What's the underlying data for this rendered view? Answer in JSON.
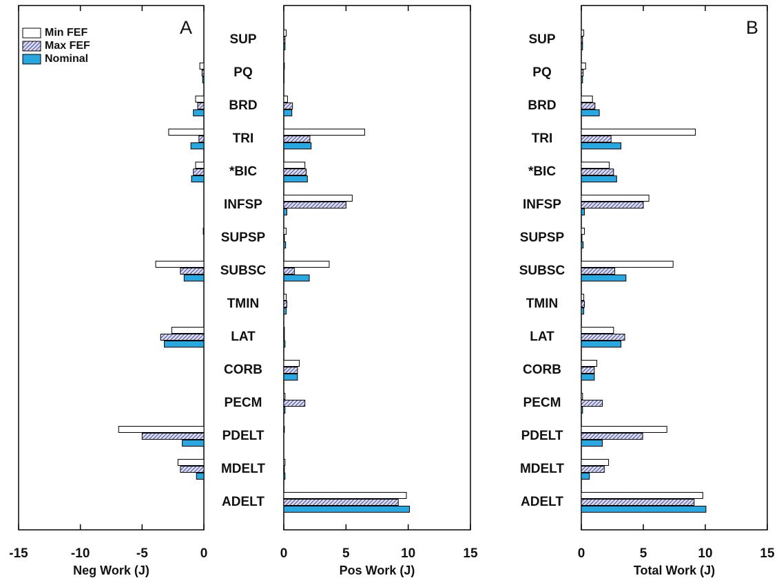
{
  "chart_data": [
    {
      "type": "bar",
      "orientation": "horizontal",
      "xlabel": "Neg Work (J)",
      "annotation": "A",
      "legend": "upper left",
      "categories": [
        "SUP",
        "PQ",
        "BRD",
        "TRI",
        "*BIC",
        "INFSP",
        "SUPSP",
        "SUBSC",
        "TMIN",
        "LAT",
        "CORB",
        "PECM",
        "PDELT",
        "MDELT",
        "ADELT"
      ],
      "xlim": [
        -15,
        0
      ],
      "xticks": [
        -15,
        -10,
        -5,
        0
      ],
      "series": [
        {
          "name": "Min FEF",
          "color": "#ffffff",
          "values": [
            0,
            -0.33,
            -0.67,
            -2.85,
            -0.67,
            0,
            -0.05,
            -3.9,
            0,
            -2.6,
            0,
            0,
            -6.9,
            -2.1,
            0
          ]
        },
        {
          "name": "Max FEF",
          "color": "#4a4f9a",
          "hatch": true,
          "values": [
            0,
            -0.15,
            -0.5,
            -0.4,
            -0.85,
            0,
            0,
            -1.9,
            0,
            -3.5,
            0,
            0,
            -5.0,
            -1.9,
            0
          ]
        },
        {
          "name": "Nominal",
          "color": "#29a8e0",
          "values": [
            0,
            -0.1,
            -0.85,
            -1.05,
            -1.0,
            0,
            0,
            -1.6,
            0,
            -3.2,
            0,
            0,
            -1.75,
            -0.6,
            0
          ]
        }
      ]
    },
    {
      "type": "bar",
      "orientation": "horizontal",
      "xlabel": "Pos Work (J)",
      "xlim": [
        0,
        15
      ],
      "xticks": [
        0,
        5,
        10,
        15
      ],
      "series": [
        {
          "color": "#ffffff",
          "values": [
            0.2,
            0.05,
            0.3,
            6.5,
            1.7,
            5.5,
            0.2,
            3.65,
            0.2,
            0.05,
            1.25,
            0.1,
            0.05,
            0.1,
            9.85
          ]
        },
        {
          "color": "#4a4f9a",
          "hatch": true,
          "values": [
            0.1,
            0.03,
            0.7,
            2.1,
            1.8,
            5.0,
            0.05,
            0.85,
            0.25,
            0.05,
            1.1,
            1.7,
            0,
            0.05,
            9.2
          ]
        },
        {
          "color": "#29a8e0",
          "values": [
            0.1,
            0.03,
            0.65,
            2.2,
            1.9,
            0.25,
            0.15,
            2.05,
            0.2,
            0.1,
            1.1,
            0.1,
            0,
            0.1,
            10.1
          ]
        }
      ]
    },
    {
      "type": "bar",
      "orientation": "horizontal",
      "xlabel": "Total Work (J)",
      "annotation": "B",
      "categories": [
        "SUP",
        "PQ",
        "BRD",
        "TRI",
        "*BIC",
        "INFSP",
        "SUPSP",
        "SUBSC",
        "TMIN",
        "LAT",
        "CORB",
        "PECM",
        "PDELT",
        "MDELT",
        "ADELT"
      ],
      "xlim": [
        0,
        15
      ],
      "xticks": [
        0,
        5,
        10,
        15
      ],
      "series": [
        {
          "color": "#ffffff",
          "values": [
            0.2,
            0.35,
            0.9,
            9.2,
            2.25,
            5.45,
            0.25,
            7.4,
            0.2,
            2.6,
            1.25,
            0.1,
            6.9,
            2.2,
            9.8
          ]
        },
        {
          "color": "#4a4f9a",
          "hatch": true,
          "values": [
            0.1,
            0.15,
            1.1,
            2.4,
            2.6,
            5.0,
            0.05,
            2.7,
            0.25,
            3.5,
            1.05,
            1.7,
            4.95,
            1.85,
            9.1
          ]
        },
        {
          "color": "#29a8e0",
          "values": [
            0.1,
            0.1,
            1.45,
            3.2,
            2.85,
            0.25,
            0.15,
            3.6,
            0.2,
            3.2,
            1.05,
            0.1,
            1.7,
            0.65,
            10.05
          ]
        }
      ]
    }
  ]
}
